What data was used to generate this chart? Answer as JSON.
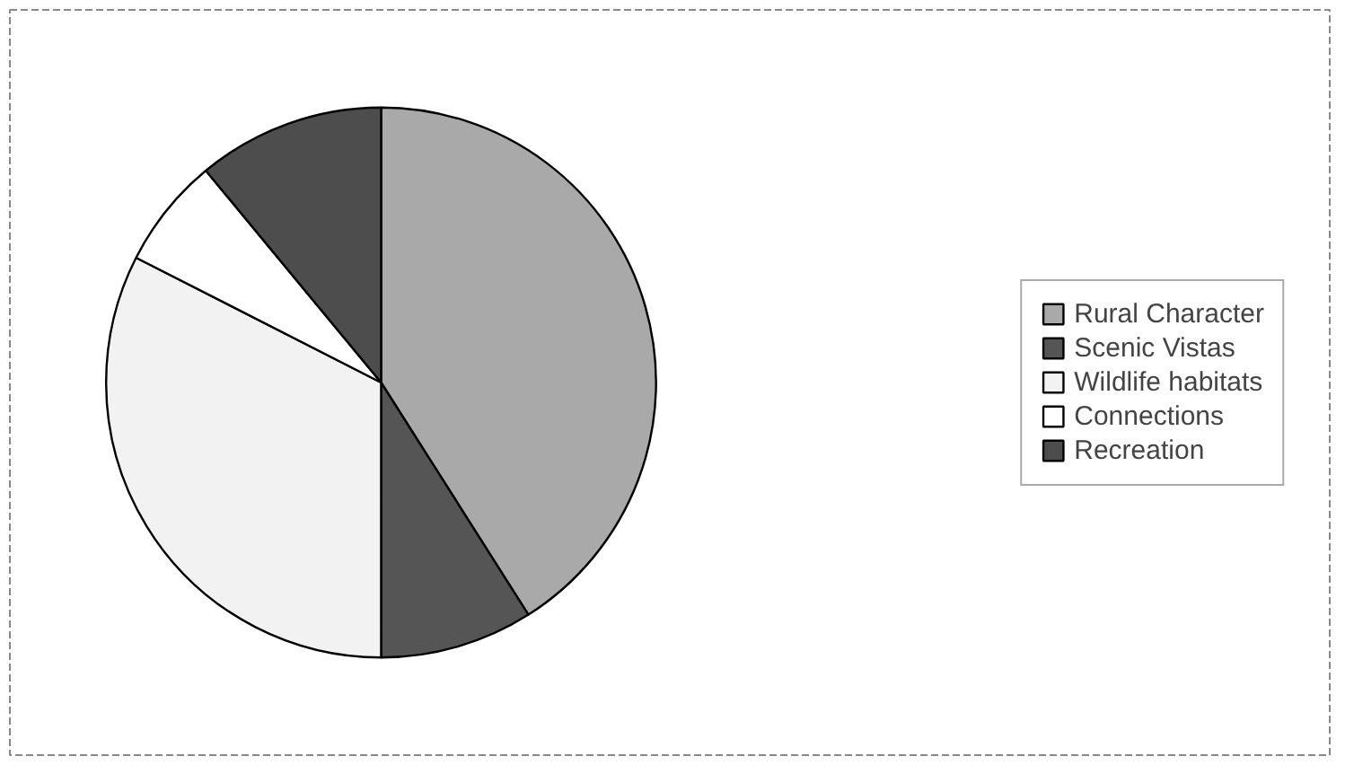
{
  "chart_data": {
    "type": "pie",
    "categories": [
      "Rural Character",
      "Scenic Vistas",
      "Wildlife habitats",
      "Connections",
      "Recreation"
    ],
    "values": [
      41,
      9,
      32.5,
      6.5,
      11
    ],
    "colors": [
      "#a9a9a9",
      "#555555",
      "#f2f2f2",
      "#ffffff",
      "#4d4d4d"
    ],
    "legend": "right"
  }
}
